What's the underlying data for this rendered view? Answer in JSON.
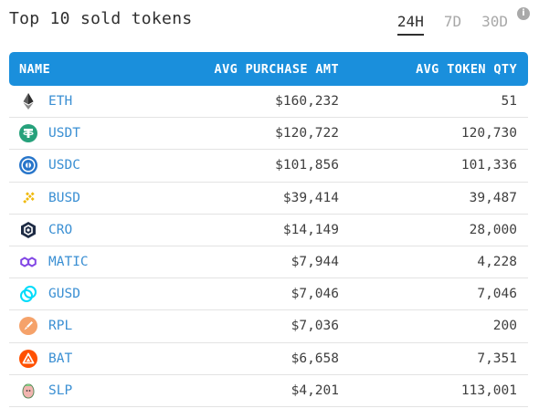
{
  "header": {
    "title": "Top 10 sold tokens",
    "tabs": [
      {
        "label": "24H",
        "active": true
      },
      {
        "label": "7D",
        "active": false
      },
      {
        "label": "30D",
        "active": false
      }
    ],
    "info_icon": "i"
  },
  "table": {
    "columns": [
      "NAME",
      "AVG PURCHASE AMT",
      "AVG TOKEN QTY"
    ],
    "rows": [
      {
        "icon": "eth-icon",
        "name": "ETH",
        "amt": "$160,232",
        "qty": "51"
      },
      {
        "icon": "usdt-icon",
        "name": "USDT",
        "amt": "$120,722",
        "qty": "120,730"
      },
      {
        "icon": "usdc-icon",
        "name": "USDC",
        "amt": "$101,856",
        "qty": "101,336"
      },
      {
        "icon": "busd-icon",
        "name": "BUSD",
        "amt": "$39,414",
        "qty": "39,487"
      },
      {
        "icon": "cro-icon",
        "name": "CRO",
        "amt": "$14,149",
        "qty": "28,000"
      },
      {
        "icon": "matic-icon",
        "name": "MATIC",
        "amt": "$7,944",
        "qty": "4,228"
      },
      {
        "icon": "gusd-icon",
        "name": "GUSD",
        "amt": "$7,046",
        "qty": "7,046"
      },
      {
        "icon": "rpl-icon",
        "name": "RPL",
        "amt": "$7,036",
        "qty": "200"
      },
      {
        "icon": "bat-icon",
        "name": "BAT",
        "amt": "$6,658",
        "qty": "7,351"
      },
      {
        "icon": "slp-icon",
        "name": "SLP",
        "amt": "$4,201",
        "qty": "113,001"
      }
    ]
  },
  "colors": {
    "header_bg": "#1a8fdc",
    "token_name": "#3a8fd3",
    "tab_active": "#2f2f2f",
    "tab_inactive": "#a8a8a8"
  }
}
